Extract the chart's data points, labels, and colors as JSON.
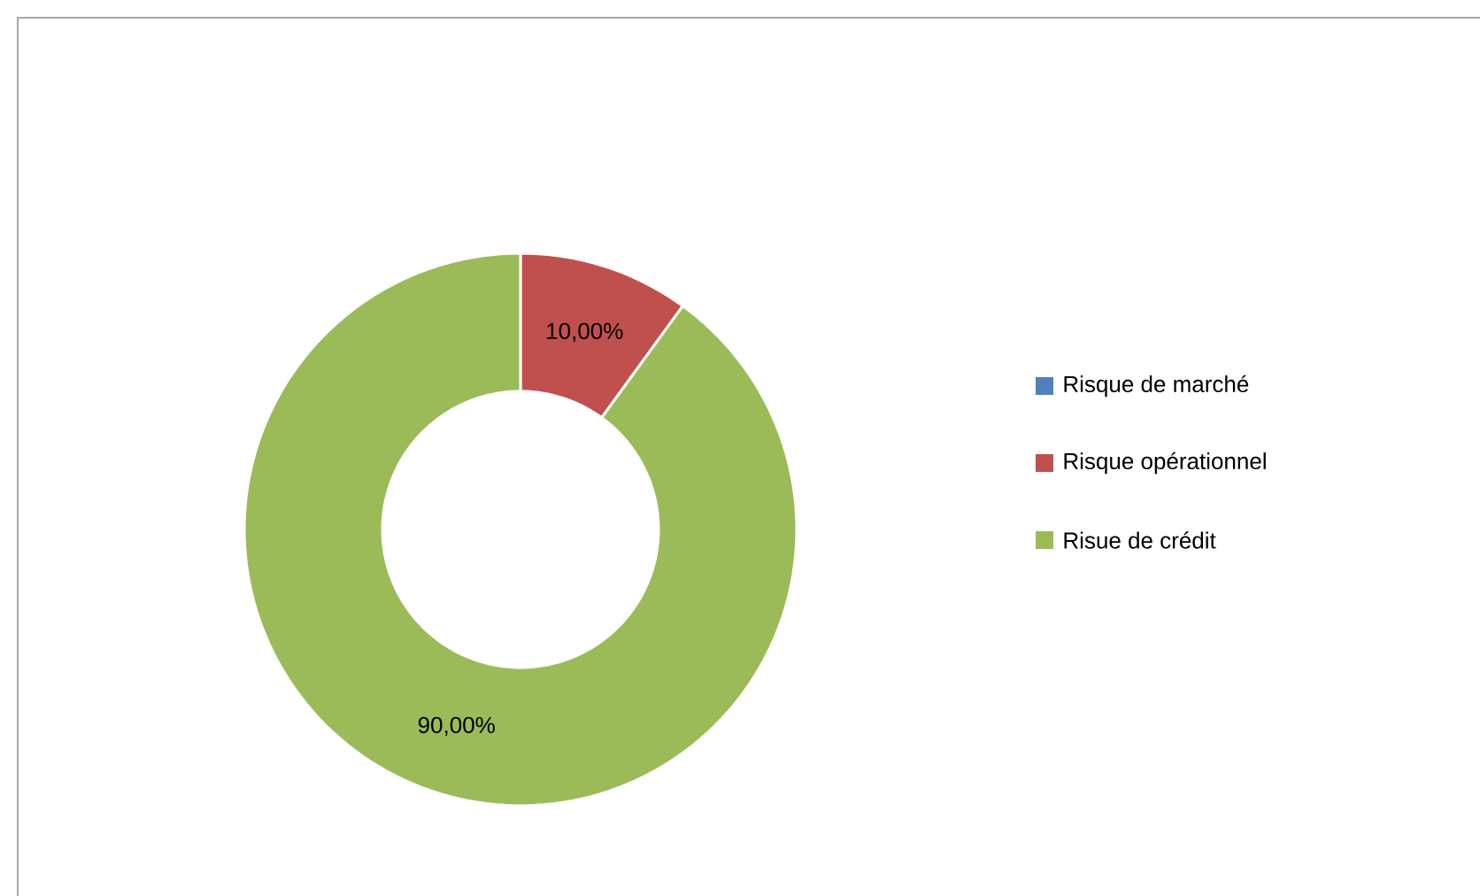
{
  "chart_data": {
    "type": "donut",
    "categories": [
      "Risque de marché",
      "Risque opérationnel",
      "Risue de crédit"
    ],
    "values": [
      0,
      10,
      90
    ],
    "colors": [
      "#4f81bd",
      "#c0504d",
      "#9bbb59"
    ],
    "value_labels": [
      null,
      "10,00%",
      "90,00%"
    ],
    "legend": "right"
  }
}
